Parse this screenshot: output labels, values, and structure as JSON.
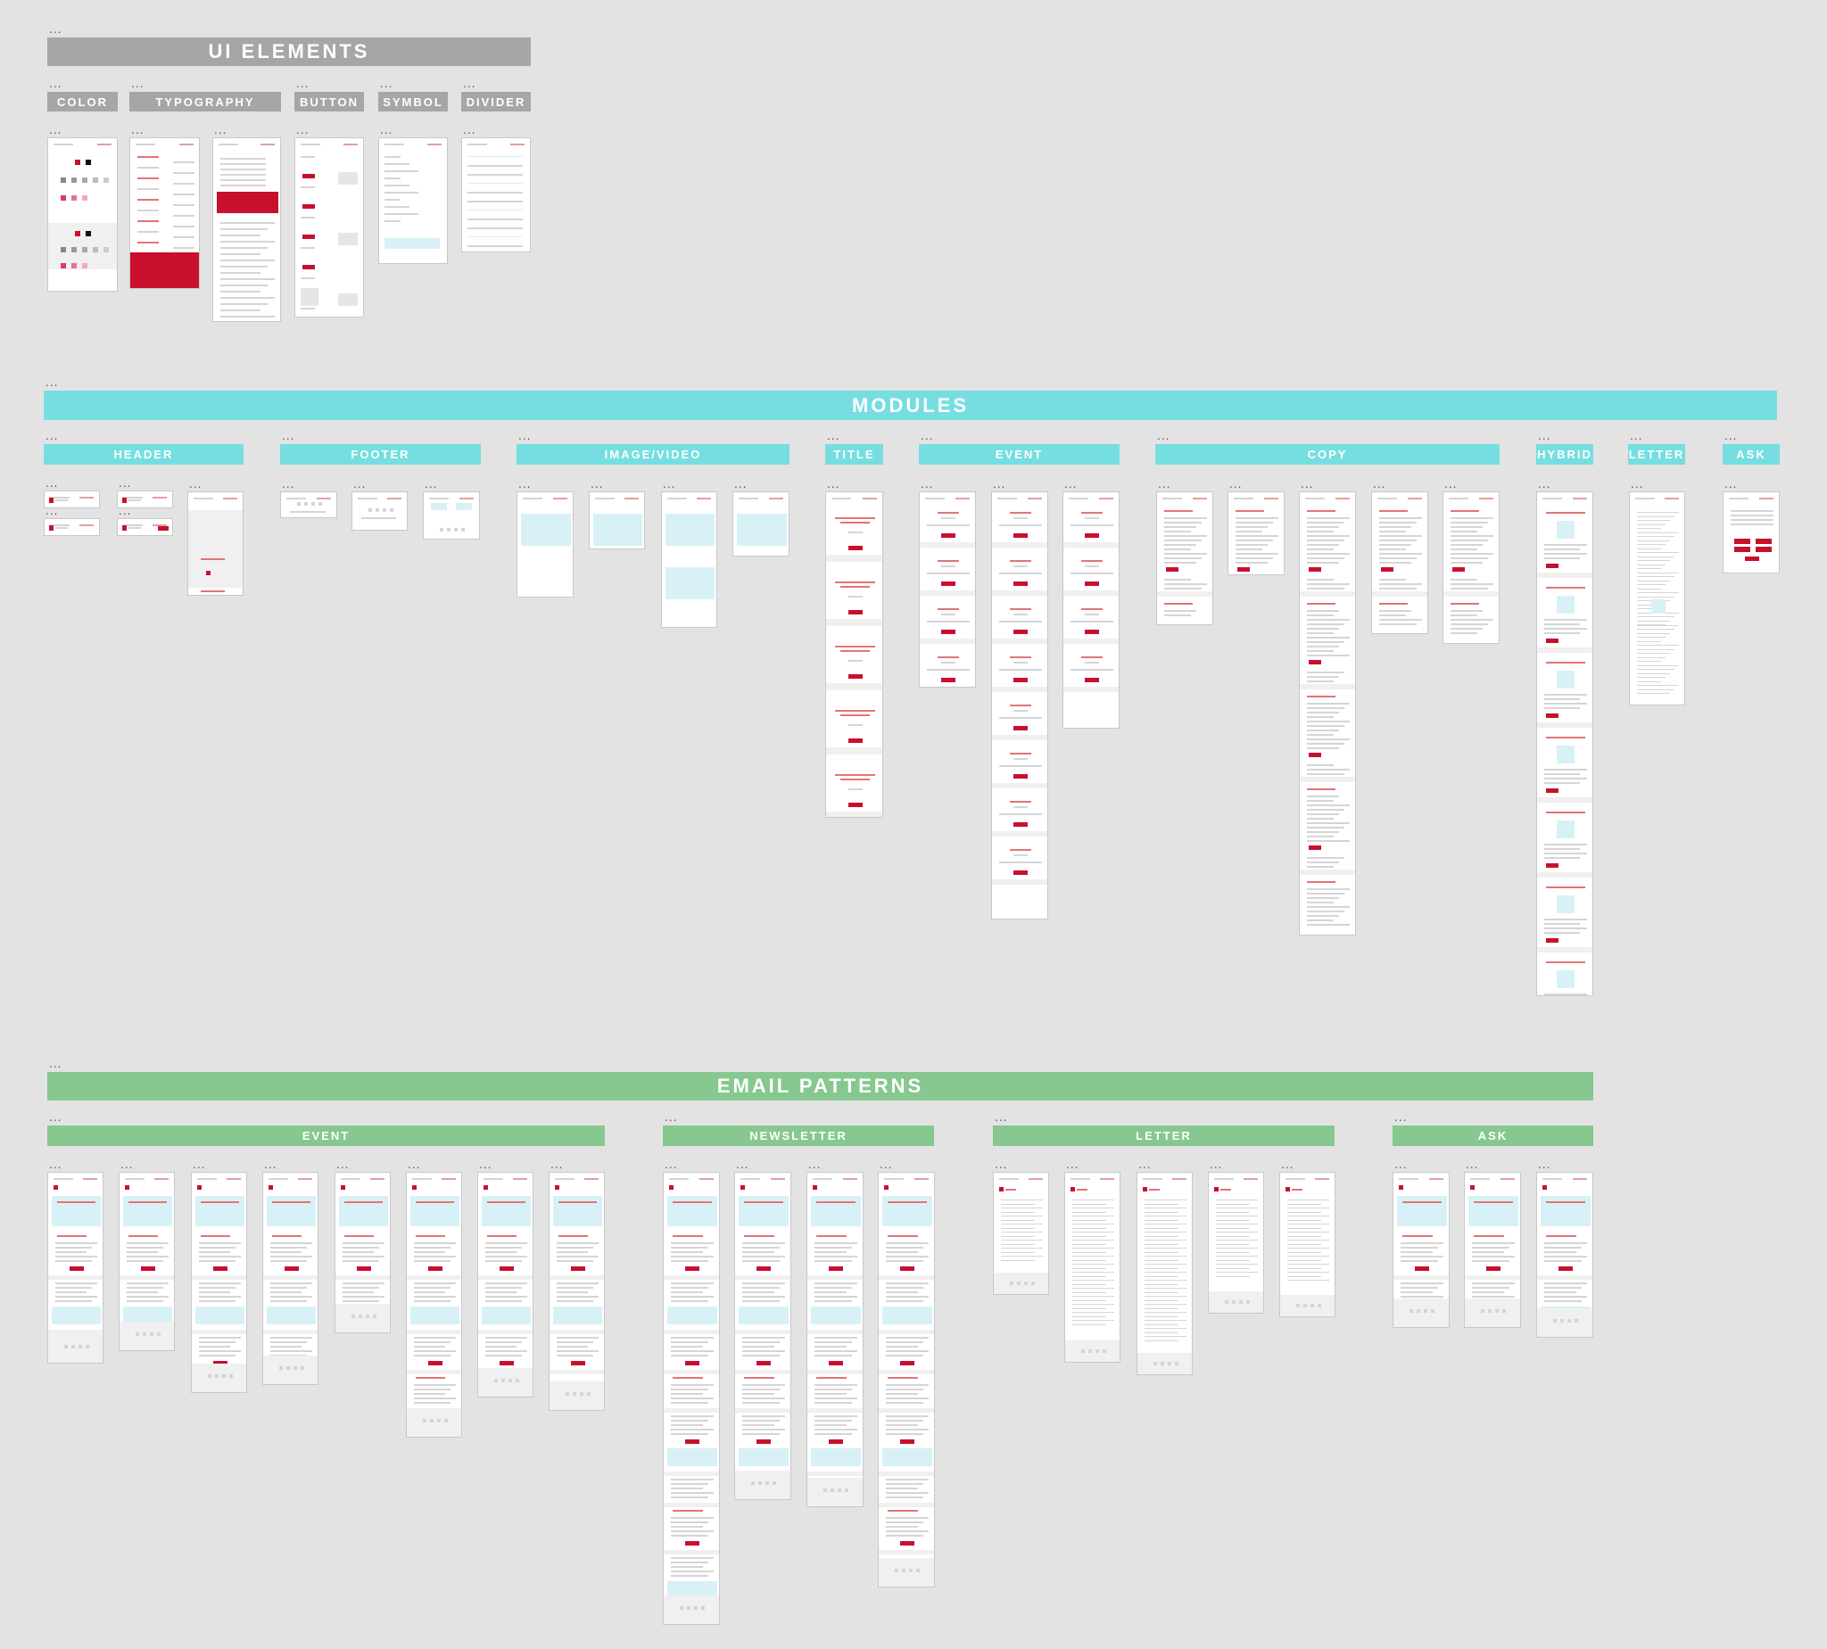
{
  "colors": {
    "red": "#c8102e",
    "teal": "#76dee0",
    "green": "#86c88f",
    "gray": "#a6a6a6",
    "image_placeholder": "#d8f1f6"
  },
  "more_icon": "...",
  "sections": {
    "ui_elements": {
      "title": "UI ELEMENTS",
      "subsections": [
        "COLOR",
        "TYPOGRAPHY",
        "BUTTON",
        "SYMBOL",
        "DIVIDER"
      ]
    },
    "modules": {
      "title": "MODULES",
      "subsections": [
        "HEADER",
        "FOOTER",
        "IMAGE/VIDEO",
        "TITLE",
        "EVENT",
        "COPY",
        "HYBRID",
        "LETTER",
        "ASK"
      ]
    },
    "email_patterns": {
      "title": "EMAIL PATTERNS",
      "subsections": [
        "EVENT",
        "NEWSLETTER",
        "LETTER",
        "ASK"
      ]
    }
  }
}
